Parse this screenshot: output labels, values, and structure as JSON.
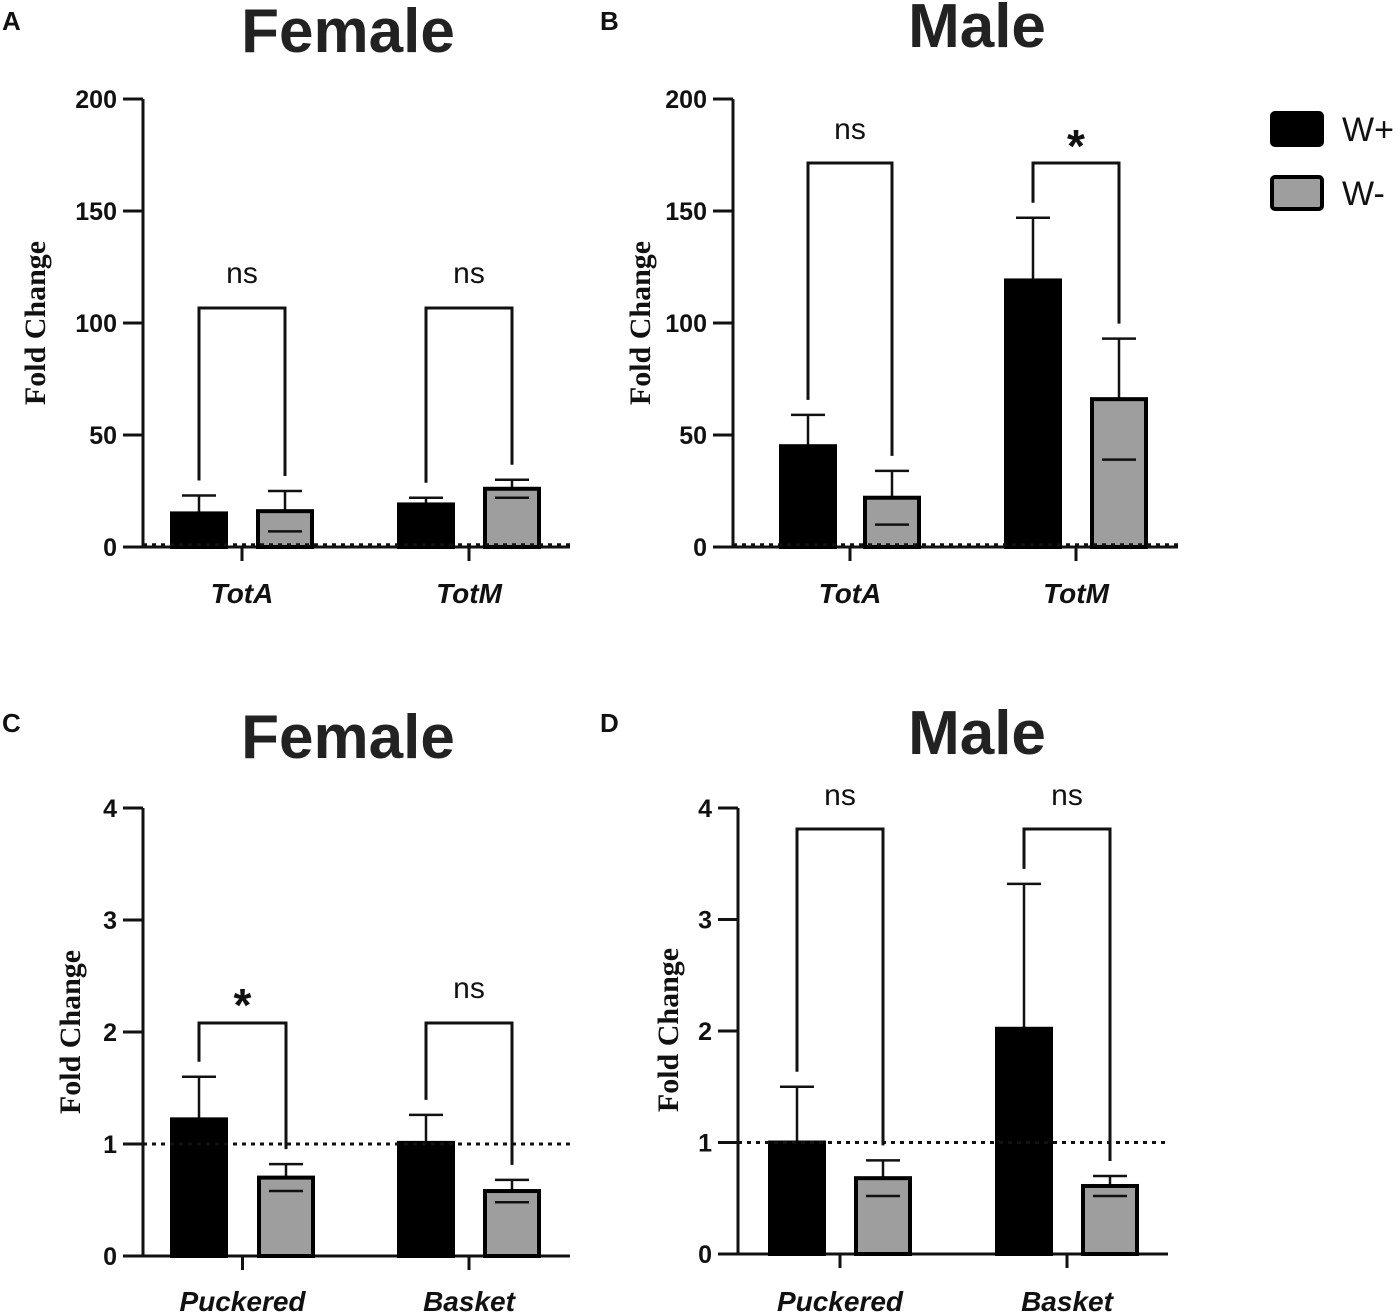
{
  "legend": [
    {
      "label": "W+",
      "color": "#000000"
    },
    {
      "label": "W-",
      "color": "#9e9e9e"
    }
  ],
  "chart_data": [
    {
      "panel": "A",
      "title": "Female",
      "type": "bar",
      "ylabel": "Fold Change",
      "ylim": [
        0,
        200
      ],
      "yticks": [
        0,
        50,
        100,
        150,
        200
      ],
      "reference_line": 1,
      "categories": [
        "TotA",
        "TotM"
      ],
      "series": [
        {
          "name": "W+",
          "values": [
            15,
            19
          ],
          "errors": [
            8,
            3
          ]
        },
        {
          "name": "W-",
          "values": [
            16,
            26
          ],
          "errors": [
            9,
            4
          ]
        }
      ],
      "significance": [
        "ns",
        "ns"
      ]
    },
    {
      "panel": "B",
      "title": "Male",
      "type": "bar",
      "ylabel": "Fold Change",
      "ylim": [
        0,
        200
      ],
      "yticks": [
        0,
        50,
        100,
        150,
        200
      ],
      "reference_line": 1,
      "categories": [
        "TotA",
        "TotM"
      ],
      "series": [
        {
          "name": "W+",
          "values": [
            45,
            119
          ],
          "errors": [
            14,
            28
          ]
        },
        {
          "name": "W-",
          "values": [
            22,
            66
          ],
          "errors": [
            12,
            27
          ]
        }
      ],
      "significance": [
        "ns",
        "*"
      ]
    },
    {
      "panel": "C",
      "title": "Female",
      "type": "bar",
      "ylabel": "Fold Change",
      "ylim": [
        0,
        4
      ],
      "yticks": [
        0,
        1,
        2,
        3,
        4
      ],
      "reference_line": 1,
      "categories": [
        "Puckered",
        "Basket"
      ],
      "series": [
        {
          "name": "W+",
          "values": [
            1.22,
            1.01
          ],
          "errors": [
            0.38,
            0.25
          ]
        },
        {
          "name": "W-",
          "values": [
            0.7,
            0.58
          ],
          "errors": [
            0.12,
            0.1
          ]
        }
      ],
      "significance": [
        "*",
        "ns"
      ]
    },
    {
      "panel": "D",
      "title": "Male",
      "type": "bar",
      "ylabel": "Fold Change",
      "ylim": [
        0,
        4
      ],
      "yticks": [
        0,
        1,
        2,
        3,
        4
      ],
      "reference_line": 1,
      "categories": [
        "Puckered",
        "Basket"
      ],
      "series": [
        {
          "name": "W+",
          "values": [
            1.0,
            2.02
          ],
          "errors": [
            0.5,
            1.3
          ]
        },
        {
          "name": "W-",
          "values": [
            0.68,
            0.61
          ],
          "errors": [
            0.16,
            0.09
          ]
        }
      ],
      "significance": [
        "ns",
        "ns"
      ]
    }
  ]
}
